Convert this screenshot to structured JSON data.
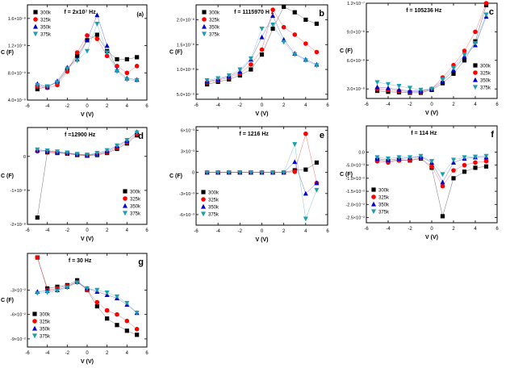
{
  "chart_data": [
    {
      "id": "a",
      "type": "line",
      "panel_label": "(a)",
      "title": "f = 2x10⁷ Hz",
      "xlabel": "V (V)",
      "ylabel": "C (F)",
      "xlim": [
        -6,
        6
      ],
      "ylim": [
        4e-09,
        1.8e-08
      ],
      "xticks": [
        "-6",
        "-4",
        "-2",
        "0",
        "2",
        "4",
        "6"
      ],
      "yticks": [
        {
          "v": 4e-09,
          "label": "4.0×10⁻⁹"
        },
        {
          "v": 8e-09,
          "label": "8.0×10⁻⁹"
        },
        {
          "v": 1.2e-08,
          "label": "1.2×10⁻⁸"
        },
        {
          "v": 1.6e-08,
          "label": "1.6×10⁻⁸"
        }
      ],
      "legend_pos": "top-left",
      "x": [
        -5,
        -4,
        -3,
        -2,
        -1,
        0,
        1,
        2,
        3,
        4,
        5
      ],
      "series": [
        {
          "name": "300k",
          "values": [
            5.6e-09,
            6e-09,
            6.6e-09,
            8.4e-09,
            1.05e-08,
            1.28e-08,
            1.36e-08,
            1.12e-08,
            1e-08,
            1e-08,
            1.03e-08
          ]
        },
        {
          "name": "325k",
          "values": [
            6e-09,
            5.8e-09,
            6.2e-09,
            8.2e-09,
            1.1e-08,
            1.35e-08,
            1.3e-08,
            1.05e-08,
            9e-09,
            8e-09,
            9e-09
          ]
        },
        {
          "name": "350k",
          "values": [
            6.4e-09,
            5.9e-09,
            6.8e-09,
            8.8e-09,
            1e-08,
            1.28e-08,
            1.65e-08,
            1.2e-08,
            8.4e-09,
            7.2e-09,
            7e-09
          ]
        },
        {
          "name": "375k",
          "values": [
            6.2e-09,
            6e-09,
            6.6e-09,
            8.6e-09,
            9.8e-09,
            1.12e-08,
            1.52e-08,
            1.1e-08,
            8.2e-09,
            7e-09,
            6.9e-09
          ]
        }
      ]
    },
    {
      "id": "b",
      "type": "line",
      "panel_label": "b",
      "title": "f = 1115970  H z",
      "xlabel": "V (V)",
      "ylabel": "C (F)",
      "xlim": [
        -6,
        6
      ],
      "ylim": [
        4e-09,
        2.3e-08
      ],
      "xticks": [
        "-6",
        "-4",
        "-2",
        "0",
        "2",
        "4",
        "6"
      ],
      "yticks": [
        {
          "v": 5e-09,
          "label": "5.0×10⁻⁹"
        },
        {
          "v": 1e-08,
          "label": "1.0×10⁻⁸"
        },
        {
          "v": 1.5e-08,
          "label": "1.5×10⁻⁸"
        },
        {
          "v": 2e-08,
          "label": "2.0×10⁻⁸"
        }
      ],
      "legend_pos": "top-left",
      "x": [
        -5,
        -4,
        -3,
        -2,
        -1,
        0,
        1,
        2,
        3,
        4,
        5
      ],
      "series": [
        {
          "name": "300k",
          "values": [
            7e-09,
            7.5e-09,
            8e-09,
            8.8e-09,
            1e-08,
            1.3e-08,
            1.82e-08,
            2.26e-08,
            2.15e-08,
            2e-08,
            1.92e-08
          ]
        },
        {
          "name": "325k",
          "values": [
            7.4e-09,
            7.8e-09,
            8.4e-09,
            9.2e-09,
            1.1e-08,
            1.4e-08,
            2.2e-08,
            1.85e-08,
            1.7e-08,
            1.52e-08,
            1.35e-08
          ]
        },
        {
          "name": "350k",
          "values": [
            7.6e-09,
            8e-09,
            8.6e-09,
            9.6e-09,
            1.2e-08,
            1.65e-08,
            2.08e-08,
            1.6e-08,
            1.32e-08,
            1.2e-08,
            1.1e-08
          ]
        },
        {
          "name": "375k",
          "values": [
            7.8e-09,
            8.2e-09,
            8.8e-09,
            1e-08,
            1.22e-08,
            1.82e-08,
            1.9e-08,
            1.55e-08,
            1.3e-08,
            1.18e-08,
            1.08e-08
          ]
        }
      ]
    },
    {
      "id": "c",
      "type": "line",
      "panel_label": "c",
      "title": "f = 105236  Hz",
      "xlabel": "V (V)",
      "ylabel": "C  (F)",
      "xlim": [
        -6,
        6
      ],
      "ylim": [
        2e-08,
        1.2e-07
      ],
      "xticks": [
        "-6",
        "-4",
        "-2",
        "0",
        "2",
        "4",
        "6"
      ],
      "yticks": [
        {
          "v": 3e-08,
          "label": "3.0×10⁻⁸"
        },
        {
          "v": 6e-08,
          "label": "6.0×10⁻⁸"
        },
        {
          "v": 9e-08,
          "label": "9.0×10⁻⁸"
        },
        {
          "v": 1.2e-07,
          "label": "1.2×10⁻⁷"
        }
      ],
      "legend_pos": "bottom-right",
      "x": [
        -5,
        -4,
        -3,
        -2,
        -1,
        0,
        1,
        2,
        3,
        4,
        5
      ],
      "series": [
        {
          "name": "300k",
          "values": [
            2.8e-08,
            2.7e-08,
            2.65e-08,
            2.6e-08,
            2.6e-08,
            2.9e-08,
            3.6e-08,
            4.6e-08,
            6e-08,
            8e-08,
            1.18e-07
          ]
        },
        {
          "name": "325k",
          "values": [
            3e-08,
            2.9e-08,
            2.8e-08,
            2.7e-08,
            2.7e-08,
            3e-08,
            4.2e-08,
            5.5e-08,
            7e-08,
            9e-08,
            1.2e-07
          ]
        },
        {
          "name": "350k",
          "values": [
            3.2e-08,
            3.1e-08,
            2.9e-08,
            2.8e-08,
            2.8e-08,
            3e-08,
            3.8e-08,
            5e-08,
            6.4e-08,
            7.6e-08,
            1.06e-07
          ]
        },
        {
          "name": "375k",
          "values": [
            3.7e-08,
            3.5e-08,
            3.3e-08,
            3.1e-08,
            2.9e-08,
            3e-08,
            4e-08,
            5.2e-08,
            6.6e-08,
            7.8e-08,
            1.08e-07
          ]
        }
      ]
    },
    {
      "id": "d",
      "type": "line",
      "panel_label": "d",
      "title": "f =12900  Hz",
      "xlabel": "V (V)",
      "ylabel": "C  (F)",
      "xlim": [
        -6,
        6
      ],
      "ylim": [
        -2e-08,
        8.5e-09
      ],
      "xticks": [
        "-6",
        "-4",
        "-2",
        "0",
        "2",
        "4",
        "6"
      ],
      "yticks": [
        {
          "v": -2e-08,
          "label": "-2×10⁻⁸"
        },
        {
          "v": -1e-08,
          "label": "-1×10⁻⁸"
        },
        {
          "v": 0,
          "label": "0"
        }
      ],
      "legend_pos": "bottom-right",
      "x": [
        -5,
        -4,
        -3,
        -2,
        -1,
        0,
        1,
        2,
        3,
        4,
        5
      ],
      "series": [
        {
          "name": "300k",
          "values": [
            -1.8e-08,
            1.2e-09,
            1e-09,
            8e-10,
            4e-10,
            2e-10,
            4e-10,
            1e-09,
            2.2e-09,
            3.8e-09,
            6.2e-09
          ]
        },
        {
          "name": "325k",
          "values": [
            1.5e-09,
            1.4e-09,
            1.2e-09,
            9e-10,
            5e-10,
            3e-10,
            6e-10,
            1.2e-09,
            2.6e-09,
            4.2e-09,
            6.6e-09
          ]
        },
        {
          "name": "350k",
          "values": [
            1.8e-09,
            1.6e-09,
            1.3e-09,
            1e-09,
            6e-10,
            4e-10,
            8e-10,
            1.5e-09,
            3e-09,
            4.6e-09,
            7.2e-09
          ]
        },
        {
          "name": "375k",
          "values": [
            2e-09,
            1.7e-09,
            1.4e-09,
            1.1e-09,
            7e-10,
            5e-10,
            1e-09,
            1.8e-09,
            3.2e-09,
            4.8e-09,
            7e-09
          ]
        }
      ]
    },
    {
      "id": "e",
      "type": "line",
      "panel_label": "e",
      "title": "f =  1216 Hz",
      "xlabel": "V (V)",
      "ylabel": "C (F)",
      "xlim": [
        -6,
        6
      ],
      "ylim": [
        -0.0075,
        0.0065
      ],
      "xticks": [
        "-6",
        "-4",
        "-2",
        "0",
        "2",
        "4",
        "6"
      ],
      "yticks": [
        {
          "v": -0.006,
          "label": "-6×10⁻³"
        },
        {
          "v": -0.003,
          "label": "-3×10⁻³"
        },
        {
          "v": 0,
          "label": "0"
        },
        {
          "v": 0.003,
          "label": "3×10⁻³"
        },
        {
          "v": 0.006,
          "label": "6×10⁻³"
        }
      ],
      "legend_pos": "bottom-left",
      "x": [
        -5,
        -4,
        -3,
        -2,
        -1,
        0,
        1,
        2,
        3,
        4,
        5
      ],
      "series": [
        {
          "name": "300k",
          "values": [
            0,
            0,
            0,
            0,
            0,
            0,
            0,
            0,
            0.0003,
            0.0004,
            0.0014
          ]
        },
        {
          "name": "325k",
          "values": [
            0,
            0,
            0,
            0,
            0,
            0,
            0,
            0,
            0.0001,
            0.0055,
            -0.0015
          ]
        },
        {
          "name": "350k",
          "values": [
            0,
            0,
            0,
            0,
            0,
            0,
            0,
            0,
            0.0015,
            -0.003,
            -0.0015
          ]
        },
        {
          "name": "375k",
          "values": [
            0,
            0,
            0,
            0,
            0,
            0,
            0,
            0,
            0.004,
            -0.0066,
            -0.0025
          ]
        }
      ]
    },
    {
      "id": "f",
      "type": "line",
      "panel_label": "f",
      "title": "f =  114  Hz",
      "xlabel": "V (V)",
      "ylabel": "C  (F)",
      "xlim": [
        -6,
        6
      ],
      "ylim": [
        -0.027,
        0.01
      ],
      "xticks": [
        "-6",
        "-4",
        "-2",
        "0",
        "2",
        "4",
        "6"
      ],
      "yticks": [
        {
          "v": -0.025,
          "label": "-2.5×10⁻²"
        },
        {
          "v": -0.02,
          "label": "-2.0×10⁻²"
        },
        {
          "v": -0.015,
          "label": "-1.5×10⁻²"
        },
        {
          "v": -0.01,
          "label": "-1.0×10⁻²"
        },
        {
          "v": -0.005,
          "label": "-5.0×10⁻³"
        },
        {
          "v": 0,
          "label": "0.0"
        }
      ],
      "legend_pos": "bottom-left",
      "x": [
        -5,
        -4,
        -3,
        -2,
        -1,
        0,
        1,
        2,
        3,
        4,
        5
      ],
      "series": [
        {
          "name": "300k",
          "values": [
            -0.003,
            -0.0035,
            -0.003,
            -0.0032,
            -0.0025,
            -0.006,
            -0.0245,
            -0.01,
            -0.0075,
            -0.006,
            -0.0055
          ]
        },
        {
          "name": "325k",
          "values": [
            -0.0035,
            -0.004,
            -0.0032,
            -0.003,
            -0.0022,
            -0.0055,
            -0.013,
            -0.007,
            -0.005,
            -0.004,
            -0.0035
          ]
        },
        {
          "name": "350k",
          "values": [
            -0.0025,
            -0.003,
            -0.0025,
            -0.0022,
            -0.0018,
            -0.004,
            -0.0115,
            -0.004,
            -0.0025,
            -0.002,
            -0.002
          ]
        },
        {
          "name": "375k",
          "values": [
            -0.002,
            -0.0025,
            -0.002,
            -0.002,
            -0.0015,
            -0.0035,
            -0.0085,
            -0.003,
            -0.002,
            -0.0018,
            -0.0015
          ]
        }
      ]
    },
    {
      "id": "g",
      "type": "line",
      "panel_label": "g",
      "title": "f = 30 Hz",
      "xlabel": "V (V)",
      "ylabel": "C  (F)",
      "xlim": [
        -6,
        6
      ],
      "ylim": [
        -0.1,
        0.015
      ],
      "xticks": [
        "-6",
        "-4",
        "-2",
        "0",
        "2",
        "4",
        "6"
      ],
      "yticks": [
        {
          "v": -0.03,
          "label": "-3×10⁻²"
        },
        {
          "v": -0.06,
          "label": "-6×10⁻²"
        },
        {
          "v": -0.09,
          "label": "-9×10⁻²"
        }
      ],
      "legend_pos": "bottom-left",
      "x": [
        -5,
        -4,
        -3,
        -2,
        -1,
        0,
        1,
        2,
        3,
        4,
        5
      ],
      "series": [
        {
          "name": "300k",
          "values": [
            0.01,
            -0.028,
            -0.026,
            -0.024,
            -0.018,
            -0.03,
            -0.05,
            -0.065,
            -0.073,
            -0.08,
            -0.085
          ]
        },
        {
          "name": "325k",
          "values": [
            0.01,
            -0.03,
            -0.028,
            -0.025,
            -0.02,
            -0.03,
            -0.045,
            -0.055,
            -0.06,
            -0.068,
            -0.078
          ]
        },
        {
          "name": "350k",
          "values": [
            -0.032,
            -0.031,
            -0.03,
            -0.026,
            -0.02,
            -0.028,
            -0.032,
            -0.036,
            -0.04,
            -0.048,
            -0.058
          ]
        },
        {
          "name": "375k",
          "values": [
            -0.034,
            -0.033,
            -0.031,
            -0.027,
            -0.021,
            -0.028,
            -0.03,
            -0.033,
            -0.038,
            -0.046,
            -0.058
          ]
        }
      ]
    }
  ],
  "series_style": {
    "300k": {
      "color": "#000000",
      "marker": "square"
    },
    "325k": {
      "color": "#ff0000",
      "marker": "circle"
    },
    "350k": {
      "color": "#0000cc",
      "marker": "triangle-up"
    },
    "375k": {
      "color": "#1a9fb0",
      "marker": "triangle-down"
    }
  }
}
